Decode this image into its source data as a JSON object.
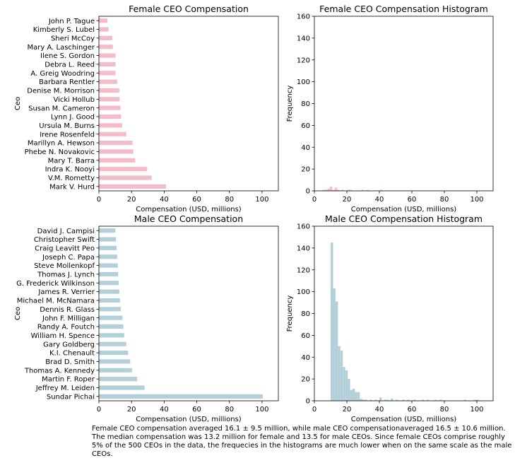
{
  "chart_data": [
    {
      "type": "bar",
      "orientation": "horizontal",
      "title": "Female CEO Compensation",
      "xlabel": "Compensation (USD, millions)",
      "ylabel": "Ceo",
      "xlim": [
        0,
        110
      ],
      "xticks": [
        0,
        20,
        40,
        60,
        80,
        100
      ],
      "color": "#f4bcc8",
      "categories": [
        "Mark V. Hurd",
        "V.M. Rometty",
        "Indra K. Nooyi",
        "Mary T. Barra",
        "Phebe N. Novakovic",
        "Marillyn A. Hewson",
        "Irene Rosenfeld",
        "Ursula M. Burns",
        "Lynn J. Good",
        "Susan M. Cameron",
        "Vicki Hollub",
        "Denise M. Morrison",
        "Barbara Rentler",
        "A. Greig Woodring",
        "Debra L. Reed",
        "Ilene S. Gordon",
        "Mary A. Laschinger",
        "Sheri McCoy",
        "Kimberly S. Lubel",
        "John P. Tague"
      ],
      "values": [
        41.1,
        32.3,
        29.6,
        22.3,
        21.1,
        20.6,
        16.8,
        14.2,
        13.6,
        13.3,
        12.7,
        12.5,
        11.2,
        10.2,
        10.2,
        10.2,
        8.6,
        8.2,
        5.9,
        5.2
      ]
    },
    {
      "type": "histogram",
      "title": "Female CEO Compensation Histogram",
      "xlabel": "Compensation (USD, millions)",
      "ylabel": "Frequency",
      "xlim": [
        0,
        110
      ],
      "ylim": [
        0,
        160
      ],
      "xticks": [
        0,
        20,
        40,
        60,
        80,
        100
      ],
      "yticks": [
        0,
        20,
        40,
        60,
        80,
        100,
        120,
        140,
        160
      ],
      "color": "#f4bcc8",
      "bins": [
        {
          "x0": 5,
          "x1": 6.5,
          "count": 1
        },
        {
          "x0": 6.5,
          "x1": 8,
          "count": 1
        },
        {
          "x0": 8,
          "x1": 9.5,
          "count": 2
        },
        {
          "x0": 9.5,
          "x1": 11,
          "count": 4
        },
        {
          "x0": 11,
          "x1": 12.5,
          "count": 1
        },
        {
          "x0": 12.5,
          "x1": 14,
          "count": 3
        },
        {
          "x0": 14,
          "x1": 15.5,
          "count": 1
        },
        {
          "x0": 16.5,
          "x1": 18,
          "count": 1
        },
        {
          "x0": 20,
          "x1": 21.5,
          "count": 1
        },
        {
          "x0": 21.5,
          "x1": 23,
          "count": 1
        },
        {
          "x0": 29,
          "x1": 30.5,
          "count": 1
        },
        {
          "x0": 32,
          "x1": 33.5,
          "count": 1
        },
        {
          "x0": 40.5,
          "x1": 42,
          "count": 1
        }
      ]
    },
    {
      "type": "bar",
      "orientation": "horizontal",
      "title": "Male CEO Compensation",
      "xlabel": "Compensation (USD, millions)",
      "ylabel": "Ceo",
      "xlim": [
        0,
        110
      ],
      "xticks": [
        0,
        20,
        40,
        60,
        80,
        100
      ],
      "color": "#b3d0da",
      "categories": [
        "Sundar Pichai",
        "Jeffrey M. Leiden",
        "Martin F. Roper",
        "Thomas A. Kennedy",
        "Brad D. Smith",
        "K.I. Chenault",
        "Gary Goldberg",
        "William H. Spence",
        "Randy A. Foutch",
        "John F. Milligan",
        "Dennis R. Glass",
        "Michael M. McNamara",
        "James R. Verrier",
        "G. Frederick Wilkinson",
        "Thomas J. Lynch",
        "Steve Mollenkopf",
        "Joseph C. Papa",
        "Craig Leavitt Peo",
        "Christopher Swift",
        "David J. Campisi"
      ],
      "values": [
        100.5,
        28.0,
        23.5,
        20.3,
        19.2,
        17.9,
        16.8,
        15.5,
        15.0,
        14.5,
        13.4,
        12.9,
        12.5,
        12.2,
        11.8,
        11.6,
        11.2,
        10.9,
        10.5,
        10.1
      ]
    },
    {
      "type": "histogram",
      "title": "Male CEO Compensation Histogram",
      "xlabel": "Compensation (USD, millions)",
      "ylabel": "Frequency",
      "xlim": [
        0,
        110
      ],
      "ylim": [
        0,
        160
      ],
      "xticks": [
        0,
        20,
        40,
        60,
        80,
        100
      ],
      "yticks": [
        0,
        20,
        40,
        60,
        80,
        100,
        120,
        140,
        160
      ],
      "color": "#b3d0da",
      "bins": [
        {
          "x0": 10,
          "x1": 11.5,
          "count": 145
        },
        {
          "x0": 11.5,
          "x1": 13,
          "count": 103
        },
        {
          "x0": 13,
          "x1": 14.5,
          "count": 91
        },
        {
          "x0": 14.5,
          "x1": 16,
          "count": 50
        },
        {
          "x0": 16,
          "x1": 17.5,
          "count": 46
        },
        {
          "x0": 17.5,
          "x1": 19,
          "count": 31
        },
        {
          "x0": 19,
          "x1": 20.5,
          "count": 28
        },
        {
          "x0": 20.5,
          "x1": 22,
          "count": 20
        },
        {
          "x0": 22,
          "x1": 23.5,
          "count": 10
        },
        {
          "x0": 23.5,
          "x1": 25,
          "count": 11
        },
        {
          "x0": 25,
          "x1": 26.5,
          "count": 8
        },
        {
          "x0": 26.5,
          "x1": 28,
          "count": 8
        },
        {
          "x0": 28,
          "x1": 29.5,
          "count": 2
        },
        {
          "x0": 29.5,
          "x1": 31,
          "count": 1
        },
        {
          "x0": 31,
          "x1": 32.5,
          "count": 1
        },
        {
          "x0": 34,
          "x1": 35.5,
          "count": 1
        },
        {
          "x0": 37,
          "x1": 38.5,
          "count": 1
        },
        {
          "x0": 40,
          "x1": 41.5,
          "count": 3
        },
        {
          "x0": 43,
          "x1": 44.5,
          "count": 1
        },
        {
          "x0": 44.5,
          "x1": 46,
          "count": 1
        },
        {
          "x0": 47,
          "x1": 48.5,
          "count": 2
        },
        {
          "x0": 50,
          "x1": 51.5,
          "count": 1
        },
        {
          "x0": 54,
          "x1": 55.5,
          "count": 1
        },
        {
          "x0": 57,
          "x1": 58.5,
          "count": 1
        },
        {
          "x0": 61,
          "x1": 62.5,
          "count": 1
        },
        {
          "x0": 66,
          "x1": 67.5,
          "count": 1
        },
        {
          "x0": 69,
          "x1": 70.5,
          "count": 1
        },
        {
          "x0": 74,
          "x1": 75.5,
          "count": 1
        },
        {
          "x0": 77,
          "x1": 78.5,
          "count": 1
        },
        {
          "x0": 92,
          "x1": 93.5,
          "count": 1
        },
        {
          "x0": 98,
          "x1": 99.5,
          "count": 1
        },
        {
          "x0": 99.5,
          "x1": 101,
          "count": 1
        }
      ]
    }
  ],
  "caption": "Female CEO compensation averaged 16.1 ± 9.5 million, while male CEO compensationaveraged 16.5 ± 10.6 million. The median compensation was 13.2 million for female and 13.5 for male CEOs. Since female CEOs comprise roughly 5% of the 500 CEOs in the data, the frequecies in the histograms are much lower when on the same scale as the male CEOs."
}
